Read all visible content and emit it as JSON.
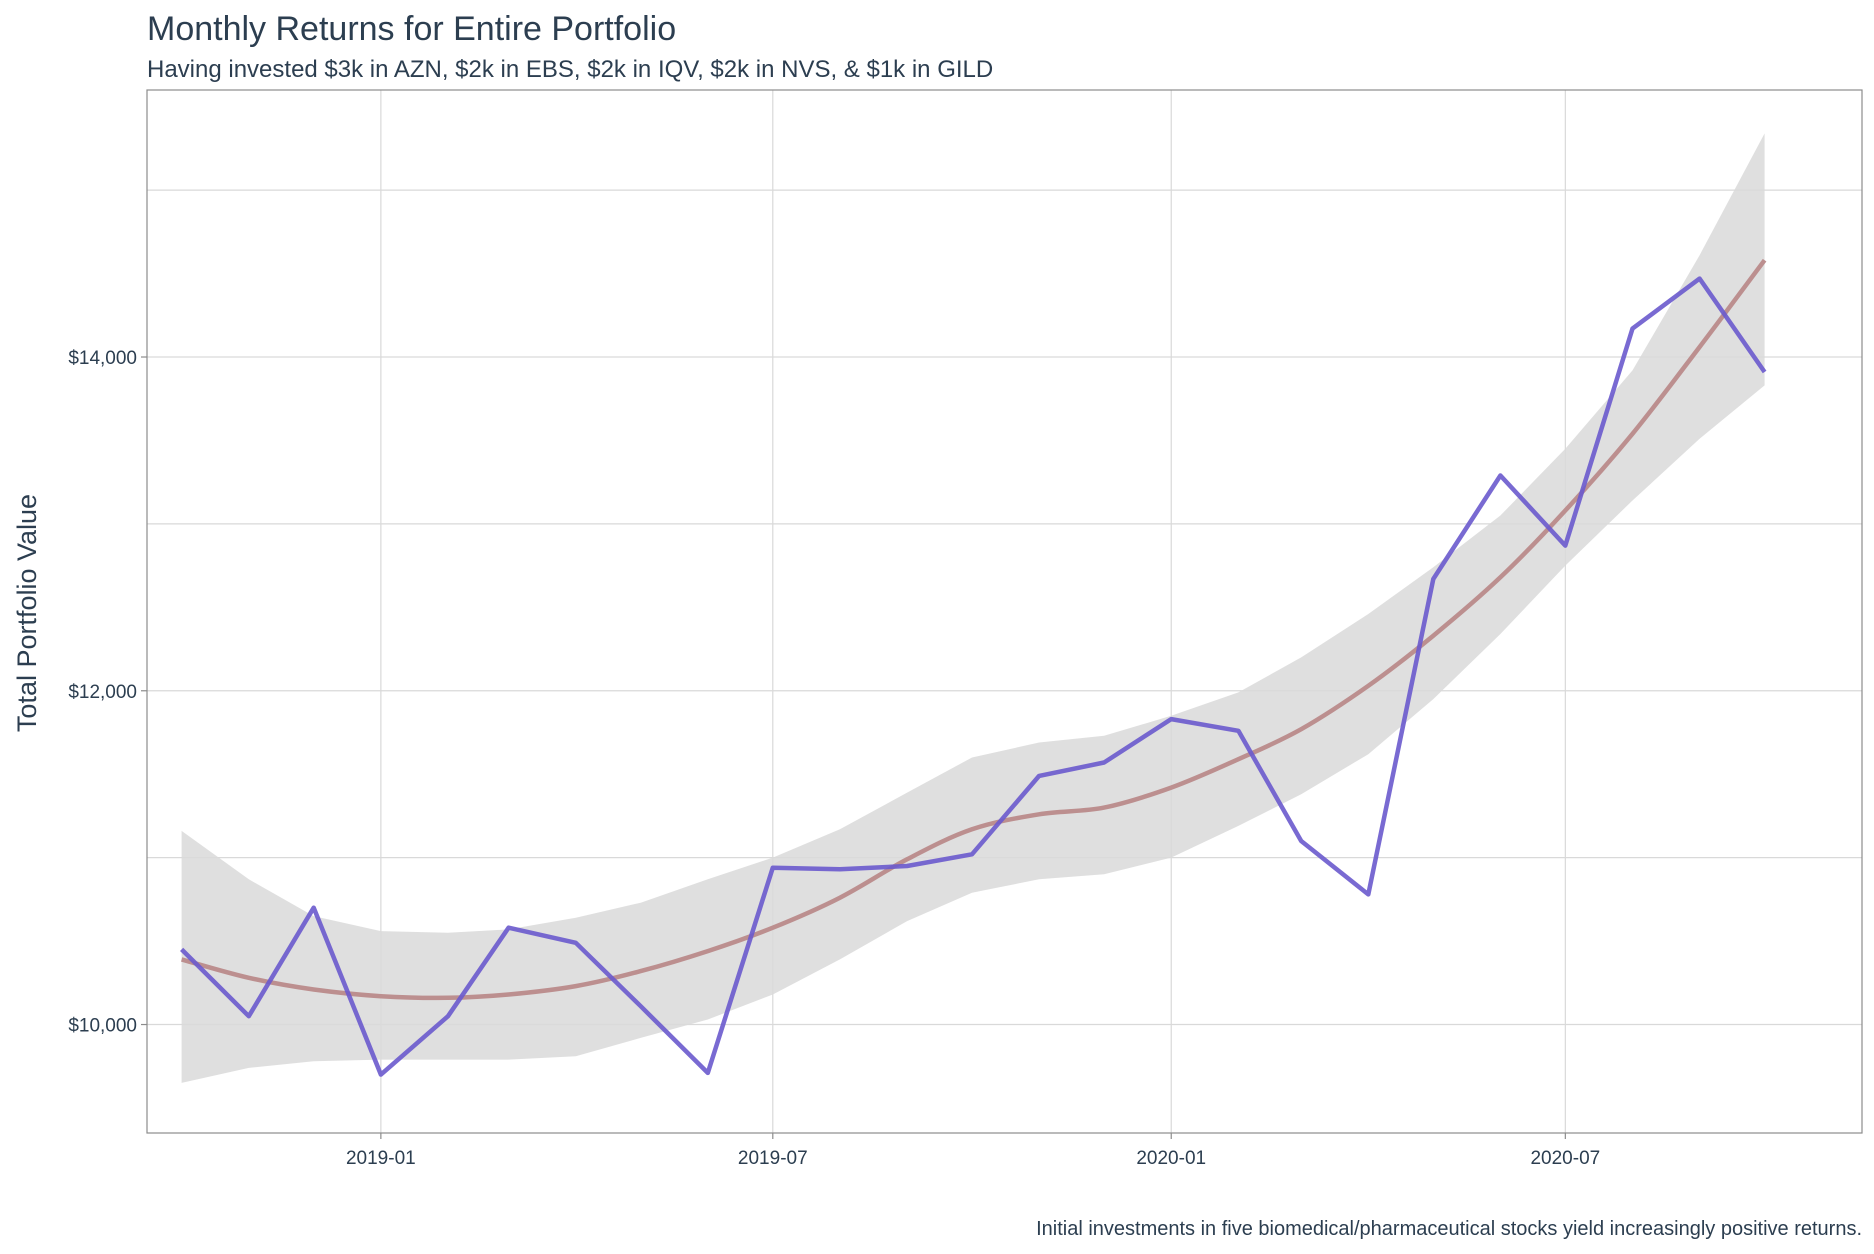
{
  "chart_data": {
    "type": "line",
    "title": "Monthly Returns for Entire Portfolio",
    "subtitle": "Having invested $3k in AZN, $2k in EBS, $2k in IQV, $2k in NVS, & $1k in GILD",
    "caption": "Initial investments in five biomedical/pharmaceutical stocks yield increasingly positive returns.",
    "xlabel": "",
    "ylabel": "Total Portfolio Value",
    "x_ticks": [
      "2019-01",
      "2019-07",
      "2020-01",
      "2020-07"
    ],
    "y_ticks": [
      {
        "value": 10000,
        "label": "$10,000"
      },
      {
        "value": 12000,
        "label": "$12,000"
      },
      {
        "value": 14000,
        "label": "$14,000"
      }
    ],
    "xlim": [
      "2018-09-15",
      "2020-11-15"
    ],
    "ylim": [
      9350,
      15600
    ],
    "grid": true,
    "legend": "none",
    "colors": {
      "line": "#6a5acd",
      "smooth": "#bc8f8f",
      "band": "#d9d9d9",
      "grid": "#d9d9d9"
    },
    "series": [
      {
        "x": [
          "2018-10-01",
          "2018-11-01",
          "2018-12-01",
          "2019-01-01",
          "2019-02-01",
          "2019-03-01",
          "2019-04-01",
          "2019-05-01",
          "2019-06-01",
          "2019-07-01",
          "2019-08-01",
          "2019-09-01",
          "2019-10-01",
          "2019-11-01",
          "2019-12-01",
          "2020-01-01",
          "2020-02-01",
          "2020-03-01",
          "2020-04-01",
          "2020-05-01",
          "2020-06-01",
          "2020-07-01",
          "2020-08-01",
          "2020-09-01",
          "2020-10-01"
        ],
        "values": [
          10450,
          10050,
          10700,
          9700,
          10050,
          10580,
          10490,
          10110,
          9710,
          10940,
          10930,
          10950,
          11020,
          11490,
          11570,
          11830,
          11760,
          11100,
          10780,
          12670,
          13290,
          12870,
          14170,
          14470,
          13910
        ]
      }
    ],
    "trend": {
      "x": [
        "2018-10-01",
        "2018-11-01",
        "2018-12-01",
        "2019-01-01",
        "2019-02-01",
        "2019-03-01",
        "2019-04-01",
        "2019-05-01",
        "2019-06-01",
        "2019-07-01",
        "2019-08-01",
        "2019-09-01",
        "2019-10-01",
        "2019-11-01",
        "2019-12-01",
        "2020-01-01",
        "2020-02-01",
        "2020-03-01",
        "2020-04-01",
        "2020-05-01",
        "2020-06-01",
        "2020-07-01",
        "2020-08-01",
        "2020-09-01",
        "2020-10-01"
      ],
      "fit": [
        10390,
        10280,
        10210,
        10170,
        10160,
        10180,
        10230,
        10320,
        10440,
        10580,
        10760,
        10990,
        11170,
        11260,
        11300,
        11420,
        11590,
        11770,
        12030,
        12330,
        12680,
        13080,
        13540,
        14060,
        14580
      ],
      "lower": [
        9650,
        9740,
        9780,
        9790,
        9790,
        9790,
        9810,
        9920,
        10030,
        10180,
        10390,
        10620,
        10790,
        10870,
        10900,
        11000,
        11190,
        11380,
        11620,
        11950,
        12340,
        12750,
        13140,
        13510,
        13830
      ],
      "upper": [
        11160,
        10870,
        10650,
        10560,
        10550,
        10570,
        10640,
        10730,
        10870,
        11000,
        11170,
        11390,
        11600,
        11690,
        11730,
        11850,
        11990,
        12200,
        12460,
        12740,
        13050,
        13450,
        13920,
        14610,
        15340
      ]
    }
  }
}
